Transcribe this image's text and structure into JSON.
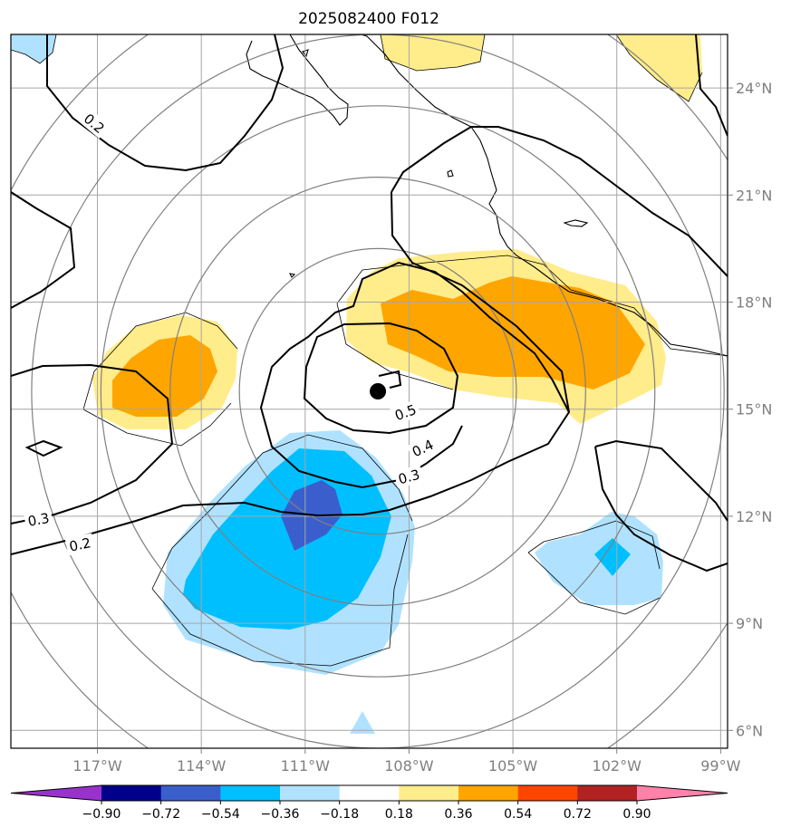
{
  "title": "2025082400 F012",
  "map": {
    "lon_range": [
      -119.5,
      -98.8
    ],
    "lat_range": [
      5.5,
      25.5
    ],
    "lon_ticks": [
      {
        "lon": -117,
        "label": "117°W"
      },
      {
        "lon": -114,
        "label": "114°W"
      },
      {
        "lon": -111,
        "label": "111°W"
      },
      {
        "lon": -108,
        "label": "108°W"
      },
      {
        "lon": -105,
        "label": "105°W"
      },
      {
        "lon": -102,
        "label": "102°W"
      },
      {
        "lon": -99,
        "label": "99°W"
      }
    ],
    "lat_ticks": [
      {
        "lat": 6,
        "label": "6°N"
      },
      {
        "lat": 9,
        "label": "9°N"
      },
      {
        "lat": 12,
        "label": "12°N"
      },
      {
        "lat": 15,
        "label": "15°N"
      },
      {
        "lat": 18,
        "label": "18°N"
      },
      {
        "lat": 21,
        "label": "21°N"
      },
      {
        "lat": 24,
        "label": "24°N"
      }
    ],
    "storm_center": {
      "lon": -108.9,
      "lat": 15.5
    },
    "range_rings": [
      {
        "lon": -108.9,
        "lat": 15.5,
        "r_deg": 4
      },
      {
        "lon": -108.9,
        "lat": 15.5,
        "r_deg": 6
      },
      {
        "lon": -108.9,
        "lat": 15.5,
        "r_deg": 8
      },
      {
        "lon": -108.9,
        "lat": 15.5,
        "r_deg": 10
      },
      {
        "lon": -108.9,
        "lat": 15.5,
        "r_deg": 12
      }
    ],
    "contour_labels": [
      {
        "text": "0.2",
        "lon": -117.1,
        "lat": 23.0,
        "angle": 40
      },
      {
        "text": "0.3",
        "lon": -118.7,
        "lat": 11.9,
        "angle": -10
      },
      {
        "text": "0.2",
        "lon": -117.5,
        "lat": 11.2,
        "angle": -12
      },
      {
        "text": "0.5",
        "lon": -108.1,
        "lat": 14.9,
        "angle": -20
      },
      {
        "text": "0.4",
        "lon": -107.6,
        "lat": 13.9,
        "angle": -25
      },
      {
        "text": "0.3",
        "lon": -108.0,
        "lat": 13.1,
        "angle": -15
      }
    ],
    "colorbar": {
      "colors": [
        "#9932cc",
        "#00008b",
        "#3a5fcd",
        "#00bfff",
        "#b0e2ff",
        "#ffffff",
        "#ffec8b",
        "#ffa500",
        "#ff4500",
        "#b22222",
        "#ff82ab"
      ],
      "labels": [
        "−0.90",
        "−0.72",
        "−0.54",
        "−0.36",
        "−0.18",
        "0.18",
        "0.36",
        "0.54",
        "0.72",
        "0.90"
      ]
    }
  }
}
